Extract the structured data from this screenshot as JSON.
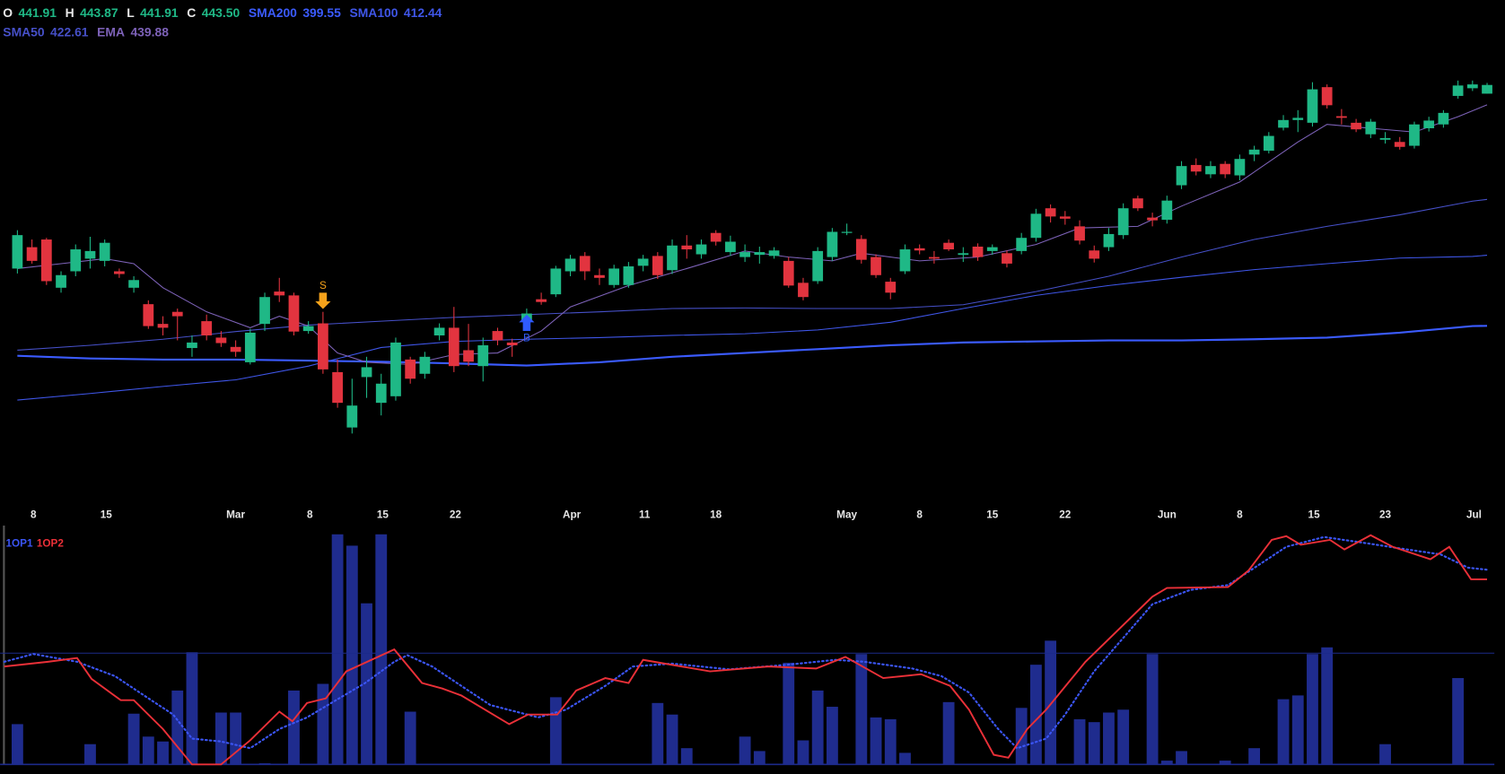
{
  "chart_data": [
    {
      "type": "candlestick",
      "legend_ohlc": [
        {
          "name": "O",
          "label": "441.91"
        },
        {
          "name": "H",
          "label": "443.87"
        },
        {
          "name": "L",
          "label": "441.91"
        },
        {
          "name": "C",
          "label": "443.50"
        }
      ],
      "xlim": [
        -1.19,
        101.5
      ],
      "xticks": [
        {
          "value": 1.1,
          "label": "8"
        },
        {
          "value": 6.1,
          "label": "15"
        },
        {
          "value": 15.0,
          "label": "Mar"
        },
        {
          "value": 20.1,
          "label": "8"
        },
        {
          "value": 25.1,
          "label": "15"
        },
        {
          "value": 30.1,
          "label": "22"
        },
        {
          "value": 38.1,
          "label": "Apr"
        },
        {
          "value": 43.1,
          "label": "11"
        },
        {
          "value": 48.0,
          "label": "18"
        },
        {
          "value": 57.0,
          "label": "May"
        },
        {
          "value": 62.0,
          "label": "8"
        },
        {
          "value": 67.0,
          "label": "15"
        },
        {
          "value": 72.0,
          "label": "22"
        },
        {
          "value": 79.0,
          "label": "Jun"
        },
        {
          "value": 84.0,
          "label": "8"
        },
        {
          "value": 89.1,
          "label": "15"
        },
        {
          "value": 94.0,
          "label": "23"
        },
        {
          "value": 100.1,
          "label": "Jul"
        }
      ],
      "ylim": [
        368,
        459
      ],
      "up_color": "#1fb886",
      "down_color": "#e2343f",
      "candles": {
        "open": [
          410.0,
          413.9,
          415.3,
          406.5,
          409.5,
          411.8,
          411.4,
          409.5,
          406.5,
          403.5,
          399.9,
          402.1,
          395.5,
          400.4,
          397.4,
          395.7,
          392.9,
          399.9,
          405.8,
          405.1,
          398.6,
          400.0,
          391.1,
          381.0,
          390.2,
          385.5,
          386.7,
          393.4,
          390.8,
          397.8,
          399.2,
          395.1,
          392.2,
          398.6,
          396.5,
          400.4,
          404.4,
          405.3,
          409.5,
          412.3,
          408.8,
          407.0,
          407.0,
          410.5,
          412.3,
          409.7,
          414.2,
          412.6,
          416.5,
          413.0,
          412.1,
          412.5,
          412.3,
          411.4,
          407.4,
          407.7,
          412.1,
          416.5,
          415.4,
          412.1,
          407.6,
          409.5,
          413.7,
          412.1,
          414.7,
          412.5,
          414.0,
          413.2,
          412.8,
          413.2,
          415.6,
          421.0,
          419.5,
          417.7,
          413.3,
          413.9,
          416.1,
          422.8,
          419.3,
          418.9,
          425.2,
          428.9,
          427.2,
          429.1,
          427.0,
          430.8,
          431.5,
          435.7,
          437.1,
          436.6,
          443.1,
          437.8,
          436.6,
          434.5,
          433.5,
          433.1,
          432.4,
          435.6,
          436.3,
          441.5,
          442.9,
          441.91
        ],
        "high": [
          417.0,
          415.3,
          415.6,
          409.5,
          414.4,
          415.8,
          415.3,
          410.0,
          408.6,
          404.2,
          401.3,
          402.7,
          397.8,
          401.6,
          398.6,
          396.9,
          399.0,
          405.6,
          408.3,
          405.6,
          400.4,
          402.1,
          393.4,
          389.9,
          393.9,
          390.8,
          397.4,
          393.9,
          394.8,
          400.0,
          403.0,
          399.9,
          397.4,
          399.2,
          397.2,
          402.7,
          405.6,
          410.5,
          412.5,
          413.0,
          410.0,
          410.7,
          411.2,
          412.5,
          413.0,
          415.3,
          416.1,
          415.3,
          417.0,
          416.0,
          414.4,
          414.0,
          413.9,
          412.1,
          408.3,
          413.9,
          417.4,
          418.2,
          416.1,
          412.6,
          408.3,
          414.4,
          414.4,
          413.2,
          415.3,
          413.9,
          414.6,
          414.4,
          413.3,
          416.5,
          420.9,
          421.7,
          420.5,
          418.8,
          414.2,
          417.4,
          421.9,
          423.3,
          420.2,
          423.3,
          429.6,
          430.1,
          429.6,
          429.6,
          430.8,
          432.4,
          434.9,
          438.0,
          438.9,
          444.0,
          443.6,
          439.1,
          437.3,
          437.3,
          434.9,
          434.0,
          436.8,
          437.7,
          438.9,
          444.3,
          444.3,
          443.87
        ],
        "low": [
          409.1,
          410.9,
          407.0,
          405.6,
          408.6,
          410.0,
          410.4,
          408.3,
          405.6,
          399.0,
          397.8,
          396.9,
          393.9,
          396.9,
          395.7,
          393.9,
          392.5,
          398.6,
          403.9,
          397.8,
          398.1,
          390.8,
          384.6,
          379.9,
          386.4,
          383.2,
          385.9,
          389.0,
          389.9,
          396.9,
          391.1,
          392.2,
          389.4,
          396.0,
          393.9,
          399.5,
          403.4,
          404.8,
          408.6,
          407.9,
          407.0,
          406.5,
          406.5,
          409.5,
          408.1,
          409.0,
          411.8,
          411.8,
          414.2,
          412.3,
          411.2,
          410.9,
          411.8,
          406.5,
          404.2,
          407.2,
          411.4,
          416.1,
          410.9,
          408.3,
          404.4,
          409.0,
          412.6,
          410.9,
          413.2,
          411.2,
          411.4,
          412.5,
          410.2,
          412.6,
          414.9,
          418.4,
          418.0,
          414.4,
          411.1,
          413.2,
          415.4,
          420.5,
          417.7,
          418.2,
          424.5,
          427.0,
          426.5,
          426.5,
          426.1,
          429.6,
          431.0,
          435.2,
          434.9,
          435.9,
          439.2,
          436.3,
          434.9,
          433.8,
          432.8,
          431.7,
          431.9,
          435.0,
          435.7,
          441.0,
          442.4,
          441.91
        ],
        "close": [
          416.1,
          411.4,
          407.7,
          408.8,
          413.5,
          413.2,
          414.7,
          409.0,
          407.9,
          399.5,
          399.2,
          401.3,
          396.5,
          397.8,
          396.4,
          394.8,
          398.3,
          404.8,
          405.1,
          398.5,
          399.5,
          391.6,
          385.5,
          385.0,
          392.0,
          389.0,
          396.5,
          389.9,
          393.9,
          399.2,
          392.2,
          393.0,
          396.0,
          396.9,
          396.0,
          401.8,
          403.9,
          410.0,
          411.8,
          409.5,
          408.3,
          410.0,
          410.4,
          411.8,
          408.8,
          414.2,
          413.5,
          414.4,
          414.9,
          414.9,
          413.0,
          413.0,
          413.3,
          406.9,
          404.8,
          413.2,
          416.7,
          416.7,
          411.6,
          408.8,
          405.6,
          413.5,
          413.3,
          411.8,
          413.5,
          412.8,
          412.1,
          413.9,
          410.9,
          415.6,
          420.0,
          419.5,
          419.1,
          415.1,
          411.8,
          416.3,
          421.0,
          421.0,
          418.8,
          422.4,
          428.7,
          427.7,
          428.7,
          427.2,
          430.0,
          431.7,
          434.2,
          437.1,
          437.5,
          442.7,
          439.8,
          437.5,
          435.4,
          436.8,
          433.8,
          432.2,
          436.3,
          437.0,
          438.4,
          443.4,
          443.6,
          443.5
        ]
      },
      "series": [
        {
          "name": "SMA200",
          "color": "#3b5bff",
          "x": [
            0,
            5,
            10,
            15,
            20,
            25,
            30,
            35,
            40,
            45,
            50,
            55,
            60,
            65,
            70,
            75,
            80,
            85,
            90,
            95,
            100,
            101
          ],
          "values": [
            394.1,
            393.6,
            393.4,
            393.4,
            393.2,
            393.0,
            392.7,
            392.3,
            392.9,
            393.9,
            394.6,
            395.3,
            396.0,
            396.5,
            396.7,
            396.9,
            396.9,
            397.1,
            397.4,
            398.3,
            399.5,
            399.55
          ]
        },
        {
          "name": "SMA100",
          "color": "#3f56e8",
          "x": [
            0,
            5,
            10,
            15,
            20,
            25,
            30,
            35,
            40,
            45,
            50,
            55,
            60,
            65,
            70,
            75,
            80,
            85,
            90,
            95,
            100,
            101
          ],
          "values": [
            386.0,
            387.2,
            388.5,
            389.7,
            392.2,
            395.6,
            396.7,
            397.1,
            397.4,
            397.8,
            398.1,
            398.8,
            400.2,
            402.7,
            405.1,
            406.9,
            408.4,
            409.8,
            410.9,
            411.9,
            412.2,
            412.44
          ]
        },
        {
          "name": "SMA50",
          "color": "#4650c8",
          "x": [
            0,
            5,
            10,
            15,
            20,
            25,
            30,
            35,
            40,
            45,
            50,
            55,
            60,
            65,
            70,
            75,
            80,
            85,
            90,
            95,
            100,
            101
          ],
          "values": [
            395.1,
            396.0,
            397.1,
            398.5,
            399.7,
            400.4,
            401.1,
            401.6,
            402.1,
            402.7,
            402.8,
            402.7,
            402.7,
            403.4,
            405.8,
            408.6,
            412.1,
            415.3,
            417.7,
            419.8,
            422.3,
            422.61
          ]
        },
        {
          "name": "EMA",
          "color": "#7d62b8",
          "x": [
            0,
            3,
            6,
            8,
            10,
            13,
            16,
            18,
            20,
            22,
            24,
            27,
            30,
            33,
            36,
            38,
            42,
            46,
            50,
            53,
            56,
            58,
            62,
            66,
            70,
            73,
            77,
            80,
            84,
            88,
            90,
            93,
            96,
            99,
            101
          ],
          "values": [
            410.0,
            410.9,
            411.8,
            410.9,
            406.5,
            402.1,
            399.2,
            401.3,
            399.5,
            394.6,
            392.9,
            392.5,
            394.3,
            394.6,
            398.6,
            403.0,
            406.9,
            410.0,
            413.2,
            412.1,
            411.4,
            412.8,
            411.4,
            412.1,
            414.4,
            417.4,
            417.7,
            421.4,
            425.8,
            433.1,
            436.3,
            435.6,
            434.9,
            437.7,
            439.88
          ]
        }
      ],
      "signals": [
        {
          "label": "S",
          "index": 21,
          "direction": "down",
          "color": "#f5a21b"
        },
        {
          "label": "B",
          "index": 35,
          "direction": "up",
          "color": "#2f5bff"
        }
      ]
    },
    {
      "type": "oscillator",
      "xlim": [
        -1.19,
        101.5
      ],
      "ylim": [
        0,
        105
      ],
      "reference_line": 50,
      "volume": {
        "color": "#1f2c8e",
        "values": [
          18.1,
          0,
          0,
          0,
          0,
          9.1,
          0,
          0,
          22.8,
          12.5,
          10.3,
          33.2,
          50.4,
          0,
          23.3,
          23.3,
          0,
          0.5,
          0,
          33.2,
          0,
          36.2,
          103.4,
          98.3,
          72.4,
          103.4,
          0,
          23.7,
          0,
          0,
          0,
          0,
          0,
          0,
          0,
          0,
          0,
          30.2,
          0,
          0,
          0,
          0,
          0,
          0,
          27.6,
          22.4,
          7.3,
          0,
          0,
          0,
          12.5,
          6.0,
          0,
          45.7,
          10.8,
          33.2,
          25.9,
          0,
          49.6,
          21.1,
          20.3,
          5.2,
          0,
          0,
          28.0,
          0,
          0,
          0,
          0,
          25.4,
          44.8,
          55.6,
          0,
          20.3,
          19.0,
          23.3,
          24.6,
          0,
          49.6,
          1.7,
          6.0,
          0,
          0,
          1.7,
          0,
          7.3,
          0,
          29.3,
          31.0,
          49.6,
          52.6,
          0,
          0,
          0,
          9.1,
          0,
          0,
          0,
          0,
          38.8,
          0,
          0
        ]
      },
      "series": [
        {
          "name": "1OP1",
          "color": "#3b55f5",
          "style": "dotted",
          "x": [
            -0.9,
            1.1,
            4.1,
            6.7,
            8.7,
            10.7,
            12.0,
            14.0,
            16.0,
            18.0,
            19.9,
            21.9,
            23.9,
            25.9,
            26.8,
            28.5,
            30.5,
            32.5,
            35.8,
            37.7,
            40.4,
            42.3,
            45.0,
            48.9,
            52.9,
            56.2,
            58.2,
            61.5,
            63.5,
            65.4,
            67.4,
            68.7,
            70.7,
            72.0,
            74.0,
            76.0,
            78.0,
            80.6,
            83.2,
            85.2,
            87.2,
            89.8,
            92.5,
            95.1,
            97.8,
            99.7,
            101.0
          ],
          "values": [
            46.1,
            49.6,
            46.1,
            39.7,
            31.0,
            22.4,
            11.6,
            10.3,
            7.3,
            15.9,
            21.1,
            28.9,
            36.6,
            46.1,
            49.1,
            44.0,
            35.3,
            26.7,
            21.1,
            24.6,
            35.3,
            44.0,
            45.3,
            42.7,
            44.8,
            47.0,
            46.1,
            43.1,
            39.7,
            32.3,
            15.9,
            7.3,
            11.6,
            22.4,
            41.8,
            56.9,
            72.0,
            78.4,
            80.6,
            89.2,
            97.8,
            102.2,
            99.6,
            97.0,
            94.4,
            88.4,
            87.5
          ]
        },
        {
          "name": "1OP2",
          "color": "#ea3038",
          "style": "solid",
          "x": [
            -0.9,
            2.1,
            4.1,
            5.1,
            7.1,
            8.0,
            10.0,
            12.0,
            14.0,
            16.0,
            18.0,
            18.9,
            19.9,
            21.2,
            22.6,
            25.9,
            27.8,
            29.2,
            30.5,
            33.8,
            35.1,
            37.1,
            38.4,
            40.4,
            42.0,
            43.0,
            47.6,
            51.6,
            54.9,
            56.9,
            59.5,
            62.1,
            64.1,
            65.4,
            67.1,
            68.1,
            69.4,
            70.7,
            73.4,
            78.0,
            79.0,
            83.2,
            84.6,
            86.2,
            87.2,
            88.2,
            90.2,
            91.2,
            93.0,
            94.5,
            97.1,
            98.4,
            99.9,
            101.0
          ],
          "values": [
            44.0,
            46.1,
            47.8,
            38.4,
            28.9,
            28.9,
            15.9,
            0,
            0,
            10.8,
            23.7,
            19.4,
            27.6,
            29.7,
            41.8,
            51.7,
            36.6,
            34.1,
            31.0,
            18.1,
            22.4,
            22.4,
            33.2,
            38.8,
            36.6,
            47.0,
            41.8,
            44.0,
            43.1,
            48.3,
            38.8,
            40.5,
            35.3,
            24.6,
            4.3,
            3.0,
            15.9,
            24.6,
            46.1,
            75.4,
            79.3,
            79.7,
            87.1,
            100.9,
            102.6,
            98.7,
            100.9,
            96.6,
            103.0,
            97.8,
            92.2,
            97.8,
            83.2,
            83.2
          ]
        }
      ]
    }
  ]
}
